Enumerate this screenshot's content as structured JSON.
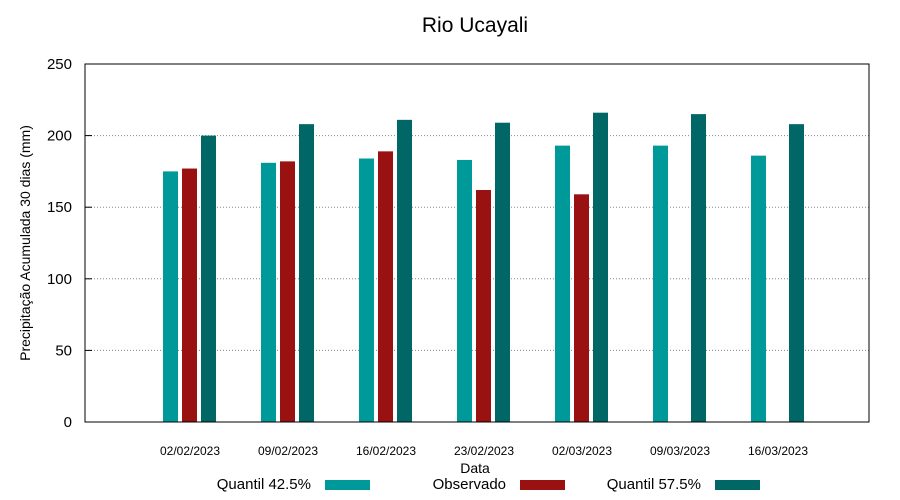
{
  "chart_data": {
    "type": "bar",
    "title": "Rio Ucayali",
    "xlabel": "Data",
    "ylabel": "Precipitação Acumulada 30 dias (mm)",
    "ylim": [
      0,
      250
    ],
    "yticks": [
      0,
      50,
      100,
      150,
      200,
      250
    ],
    "grid": true,
    "legend_position": "bottom",
    "categories": [
      "02/02/2023",
      "09/02/2023",
      "16/02/2023",
      "23/02/2023",
      "02/03/2023",
      "09/03/2023",
      "16/03/2023"
    ],
    "series": [
      {
        "name": "Quantil 42.5%",
        "color": "#009999",
        "values": [
          175,
          181,
          184,
          183,
          193,
          193,
          186
        ]
      },
      {
        "name": "Observado",
        "color": "#991111",
        "values": [
          177,
          182,
          189,
          162,
          159,
          null,
          null
        ]
      },
      {
        "name": "Quantil 57.5%",
        "color": "#006666",
        "values": [
          200,
          208,
          211,
          209,
          216,
          215,
          208
        ]
      }
    ]
  }
}
